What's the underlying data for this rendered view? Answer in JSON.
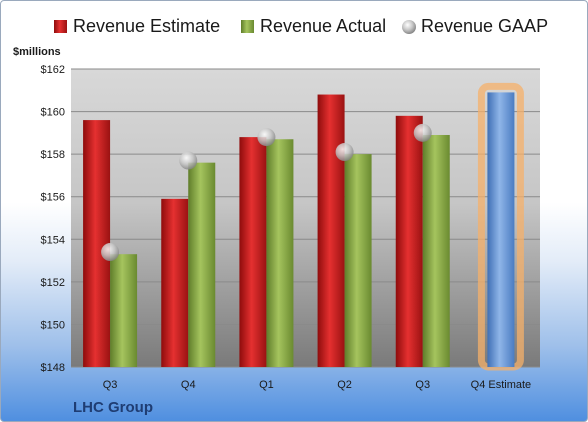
{
  "chart_data": {
    "type": "bar",
    "title": "",
    "ylabel": "$millions",
    "xlabel": "",
    "categories": [
      "Q3",
      "Q4",
      "Q1",
      "Q2",
      "Q3",
      "Q4 Estimate"
    ],
    "ylim": [
      148,
      162
    ],
    "yticks": [
      "$148",
      "$150",
      "$152",
      "$154",
      "$156",
      "$158",
      "$160",
      "$162"
    ],
    "grid": true,
    "legend_position": "top",
    "series": [
      {
        "name": "Revenue Estimate",
        "type": "bar",
        "color": "#d42020",
        "values": [
          159.6,
          155.9,
          158.8,
          160.8,
          159.8,
          160.9
        ]
      },
      {
        "name": "Revenue Actual",
        "type": "bar",
        "color": "#8fb04c",
        "values": [
          153.3,
          157.6,
          158.7,
          158.0,
          158.9,
          null
        ]
      },
      {
        "name": "Revenue GAAP",
        "type": "scatter",
        "color": "#b8b8b8",
        "values": [
          153.4,
          157.7,
          158.8,
          158.1,
          159.0,
          null
        ]
      }
    ],
    "highlight": {
      "category": "Q4 Estimate",
      "color": "#6f9bd6",
      "glow": "#f5b06a"
    }
  },
  "footer": {
    "company": "LHC Group"
  }
}
